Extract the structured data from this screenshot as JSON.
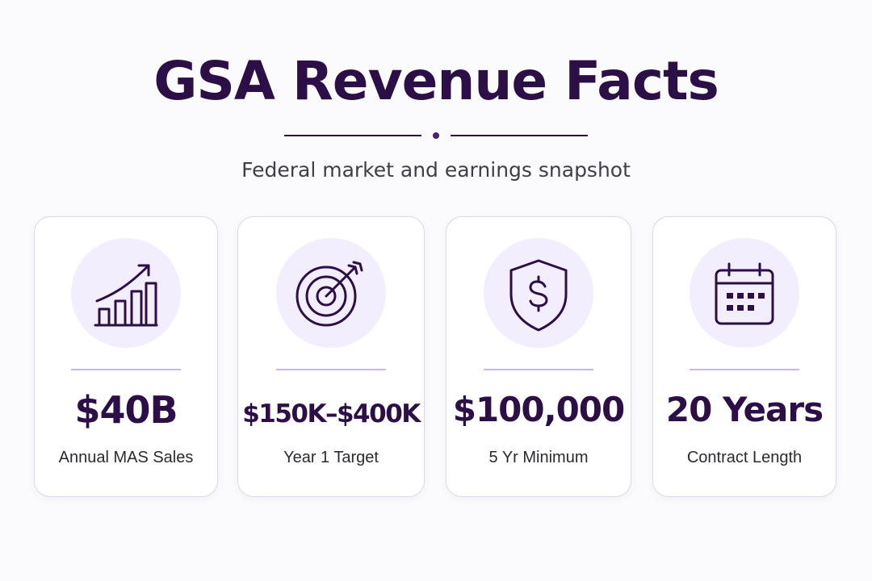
{
  "header": {
    "title": "GSA Revenue Facts",
    "subtitle": "Federal market and earnings snapshot"
  },
  "colors": {
    "primary": "#2d0f47",
    "icon_bg": "#f3eefd",
    "accent_rule": "#c9b6ea",
    "card_border": "#ddd6ef"
  },
  "cards": [
    {
      "icon": "growth-chart-icon",
      "value": "$40B",
      "label": "Annual MAS Sales"
    },
    {
      "icon": "target-icon",
      "value": "$150K–$400K",
      "label": "Year 1 Target"
    },
    {
      "icon": "shield-dollar-icon",
      "value": "$100,000",
      "label": "5 Yr Minimum"
    },
    {
      "icon": "calendar-icon",
      "value": "20 Years",
      "label": "Contract Length"
    }
  ]
}
